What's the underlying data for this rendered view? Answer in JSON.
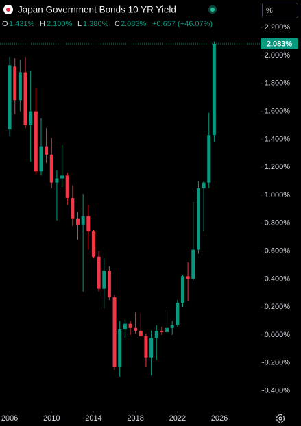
{
  "chart_data": {
    "type": "candlestick",
    "title": "Japan Government Bonds 10 YR Yield",
    "header": {
      "o_label": "O",
      "o": "1.431%",
      "h_label": "H",
      "h": "2.100%",
      "l_label": "L",
      "l": "1.380%",
      "c_label": "C",
      "c": "2.083%",
      "change": "+0.657 (+46.07%)"
    },
    "unit_button": "%",
    "last_price_label": "2.083%",
    "up_color": "#089981",
    "down_color": "#f23645",
    "x": [
      2006,
      2006.5,
      2007,
      2007.5,
      2008,
      2008.5,
      2009,
      2009.5,
      2010,
      2010.5,
      2011,
      2011.5,
      2012,
      2012.5,
      2013,
      2013.5,
      2014,
      2014.5,
      2015,
      2015.5,
      2016,
      2016.5,
      2017,
      2017.5,
      2018,
      2018.5,
      2019,
      2019.5,
      2020,
      2020.5,
      2021,
      2021.5,
      2022,
      2022.5,
      2023,
      2023.5,
      2024,
      2024.5,
      2025,
      2025.5
    ],
    "open": [
      1.47,
      1.92,
      1.68,
      1.88,
      1.5,
      1.6,
      1.17,
      1.35,
      1.29,
      1.09,
      1.12,
      1.14,
      0.98,
      0.83,
      0.79,
      0.85,
      0.74,
      0.56,
      0.33,
      0.46,
      0.27,
      -0.23,
      0.04,
      0.08,
      0.05,
      0.03,
      -0.01,
      -0.16,
      -0.02,
      0.03,
      0.02,
      0.05,
      0.07,
      0.23,
      0.42,
      0.4,
      0.61,
      1.05,
      1.09,
      1.431
    ],
    "high": [
      1.99,
      1.98,
      1.97,
      1.99,
      1.89,
      1.77,
      1.55,
      1.48,
      1.41,
      1.18,
      1.36,
      1.16,
      1.07,
      0.88,
      1.01,
      0.93,
      0.75,
      0.6,
      0.55,
      0.49,
      0.29,
      0.1,
      0.11,
      0.1,
      0.16,
      0.16,
      0.01,
      0.03,
      0.07,
      0.06,
      0.18,
      0.1,
      0.25,
      0.43,
      0.52,
      0.95,
      1.1,
      1.1,
      1.59,
      2.1
    ],
    "low": [
      1.42,
      1.58,
      1.6,
      1.48,
      1.24,
      1.15,
      1.14,
      1.23,
      1.05,
      0.82,
      1.06,
      0.93,
      0.78,
      0.68,
      0.31,
      0.61,
      0.55,
      0.31,
      0.19,
      0.25,
      -0.25,
      -0.3,
      -0.02,
      0.0,
      0.01,
      -0.01,
      -0.23,
      -0.29,
      -0.18,
      0.0,
      0.01,
      0.0,
      0.06,
      0.2,
      0.24,
      0.39,
      0.58,
      0.74,
      1.05,
      1.38
    ],
    "close": [
      1.93,
      1.68,
      1.88,
      1.5,
      1.6,
      1.17,
      1.35,
      1.29,
      1.09,
      1.12,
      1.14,
      0.98,
      0.83,
      0.79,
      0.85,
      0.74,
      0.56,
      0.33,
      0.46,
      0.27,
      -0.23,
      0.04,
      0.08,
      0.05,
      0.03,
      -0.01,
      -0.16,
      -0.02,
      0.03,
      0.02,
      0.05,
      0.07,
      0.23,
      0.42,
      0.4,
      0.61,
      1.05,
      1.09,
      1.43,
      2.083
    ],
    "xlim": [
      2005.08,
      2029.92
    ],
    "xticks": [
      2006,
      2010,
      2014,
      2018,
      2022,
      2026
    ],
    "ylim": [
      -0.544,
      2.397
    ],
    "yticks": [
      {
        "value": 2.2,
        "label": "2.200%"
      },
      {
        "value": 2.0,
        "label": "2.000%"
      },
      {
        "value": 1.8,
        "label": "1.800%"
      },
      {
        "value": 1.6,
        "label": "1.600%"
      },
      {
        "value": 1.4,
        "label": "1.400%"
      },
      {
        "value": 1.2,
        "label": "1.200%"
      },
      {
        "value": 1.0,
        "label": "1.000%"
      },
      {
        "value": 0.8,
        "label": "0.800%"
      },
      {
        "value": 0.6,
        "label": "0.600%"
      },
      {
        "value": 0.4,
        "label": "0.400%"
      },
      {
        "value": 0.2,
        "label": "0.200%"
      },
      {
        "value": 0,
        "label": "0.000%"
      },
      {
        "value": -0.2,
        "label": "-0.200%"
      },
      {
        "value": -0.4,
        "label": "-0.400%"
      }
    ]
  }
}
